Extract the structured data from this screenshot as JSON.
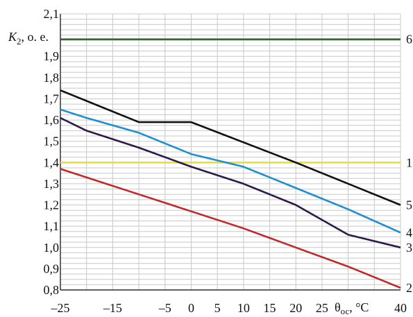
{
  "chart_data": {
    "type": "line",
    "title": "",
    "xlabel": "θос, °С",
    "ylabel": "K2, о. е.",
    "ylabel_parts": {
      "sym": "K",
      "sub": "2",
      "rest": ", о. е."
    },
    "xlabel_parts": {
      "sym": "θ",
      "sub": "ос",
      "rest": ", °С"
    },
    "xlim": [
      -25,
      40
    ],
    "ylim": [
      0.8,
      2.1
    ],
    "x_ticks": [
      -25,
      -15,
      -5,
      0,
      5,
      10,
      15,
      20,
      25,
      40
    ],
    "x_tick_labels": [
      "–25",
      "–15",
      "–5",
      "0",
      "5",
      "10",
      "15",
      "20",
      "25",
      "40"
    ],
    "x_grid": [
      -25,
      -20,
      -15,
      -10,
      -5,
      0,
      5,
      10,
      15,
      20,
      25,
      30,
      35,
      40
    ],
    "y_ticks": [
      0.8,
      0.9,
      1.0,
      1.1,
      1.2,
      1.3,
      1.4,
      1.5,
      1.6,
      1.7,
      1.8,
      1.9,
      2.0,
      2.1
    ],
    "y_tick_labels": [
      "0,8",
      "0,9",
      "1,0",
      "1,1",
      "1,2",
      "1,3",
      "1,4",
      "1,5",
      "1,6",
      "1,7",
      "1,8",
      "1,9",
      "",
      "2,1"
    ],
    "y_minor_grid_step": 0.025,
    "grid": true,
    "series": [
      {
        "name": "1",
        "color": "#e8e030",
        "x": [
          -25,
          40
        ],
        "y": [
          1.4,
          1.4
        ]
      },
      {
        "name": "2",
        "color": "#c0282a",
        "x": [
          -25,
          -10,
          0,
          10,
          20,
          30,
          40
        ],
        "y": [
          1.37,
          1.25,
          1.17,
          1.09,
          1.0,
          0.91,
          0.81
        ]
      },
      {
        "name": "3",
        "color": "#2e1a4a",
        "x": [
          -25,
          -20,
          -10,
          0,
          10,
          20,
          30,
          40
        ],
        "y": [
          1.61,
          1.55,
          1.47,
          1.38,
          1.3,
          1.2,
          1.06,
          1.0
        ]
      },
      {
        "name": "4",
        "color": "#1f8fd0",
        "x": [
          -25,
          -20,
          -10,
          0,
          10,
          20,
          30,
          40
        ],
        "y": [
          1.65,
          1.61,
          1.54,
          1.44,
          1.38,
          1.28,
          1.18,
          1.07
        ]
      },
      {
        "name": "5",
        "color": "#111111",
        "x": [
          -25,
          -10,
          0,
          20,
          40
        ],
        "y": [
          1.74,
          1.59,
          1.59,
          1.4,
          1.2
        ]
      },
      {
        "name": "6",
        "color": "#2a6e2a",
        "x": [
          -25,
          40
        ],
        "y": [
          1.98,
          1.98
        ]
      }
    ]
  }
}
